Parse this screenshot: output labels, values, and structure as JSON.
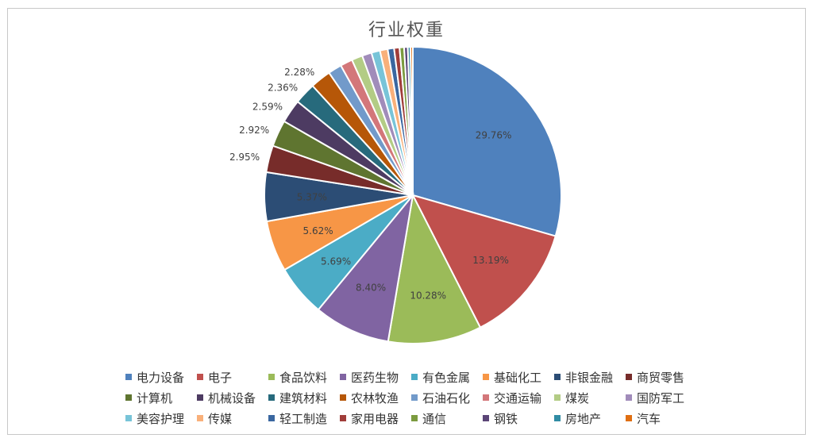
{
  "chart_data": {
    "type": "pie",
    "title": "行业权重",
    "legend_position": "bottom",
    "slices": [
      {
        "name": "电力设备",
        "value": 29.76,
        "label": "29.76%",
        "color": "#4f81bd"
      },
      {
        "name": "电子",
        "value": 13.19,
        "label": "13.19%",
        "color": "#c0504d"
      },
      {
        "name": "食品饮料",
        "value": 10.28,
        "label": "10.28%",
        "color": "#9bbb59"
      },
      {
        "name": "医药生物",
        "value": 8.4,
        "label": "8.40%",
        "color": "#8064a2"
      },
      {
        "name": "有色金属",
        "value": 5.69,
        "label": "5.69%",
        "color": "#4bacc6"
      },
      {
        "name": "基础化工",
        "value": 5.62,
        "label": "5.62%",
        "color": "#f79646"
      },
      {
        "name": "非银金融",
        "value": 5.37,
        "label": "5.37%",
        "color": "#2c4d75"
      },
      {
        "name": "商贸零售",
        "value": 2.95,
        "label": "2.95%",
        "color": "#772c2a"
      },
      {
        "name": "计算机",
        "value": 2.92,
        "label": "2.92%",
        "color": "#5f7530"
      },
      {
        "name": "机械设备",
        "value": 2.59,
        "label": "2.59%",
        "color": "#4d3b62"
      },
      {
        "name": "建筑材料",
        "value": 2.36,
        "label": "2.36%",
        "color": "#276a7c"
      },
      {
        "name": "农林牧渔",
        "value": 2.28,
        "label": "2.28%",
        "color": "#b65708"
      },
      {
        "name": "石油石化",
        "value": 1.5,
        "label": "",
        "color": "#729aca"
      },
      {
        "name": "交通运输",
        "value": 1.35,
        "label": "",
        "color": "#d3777a"
      },
      {
        "name": "煤炭",
        "value": 1.2,
        "label": "",
        "color": "#b3cc85"
      },
      {
        "name": "国防军工",
        "value": 1.05,
        "label": "",
        "color": "#a18cba"
      },
      {
        "name": "美容护理",
        "value": 0.95,
        "label": "",
        "color": "#78c4d8"
      },
      {
        "name": "传媒",
        "value": 0.85,
        "label": "",
        "color": "#f9b07a"
      },
      {
        "name": "轻工制造",
        "value": 0.7,
        "label": "",
        "color": "#3a67a0"
      },
      {
        "name": "家用电器",
        "value": 0.6,
        "label": "",
        "color": "#a03d3a"
      },
      {
        "name": "通信",
        "value": 0.5,
        "label": "",
        "color": "#7b9b3f"
      },
      {
        "name": "钢铁",
        "value": 0.4,
        "label": "",
        "color": "#5b4577"
      },
      {
        "name": "房地产",
        "value": 0.3,
        "label": "",
        "color": "#318ca4"
      },
      {
        "name": "汽车",
        "value": 0.25,
        "label": "",
        "color": "#e06f12"
      }
    ]
  }
}
